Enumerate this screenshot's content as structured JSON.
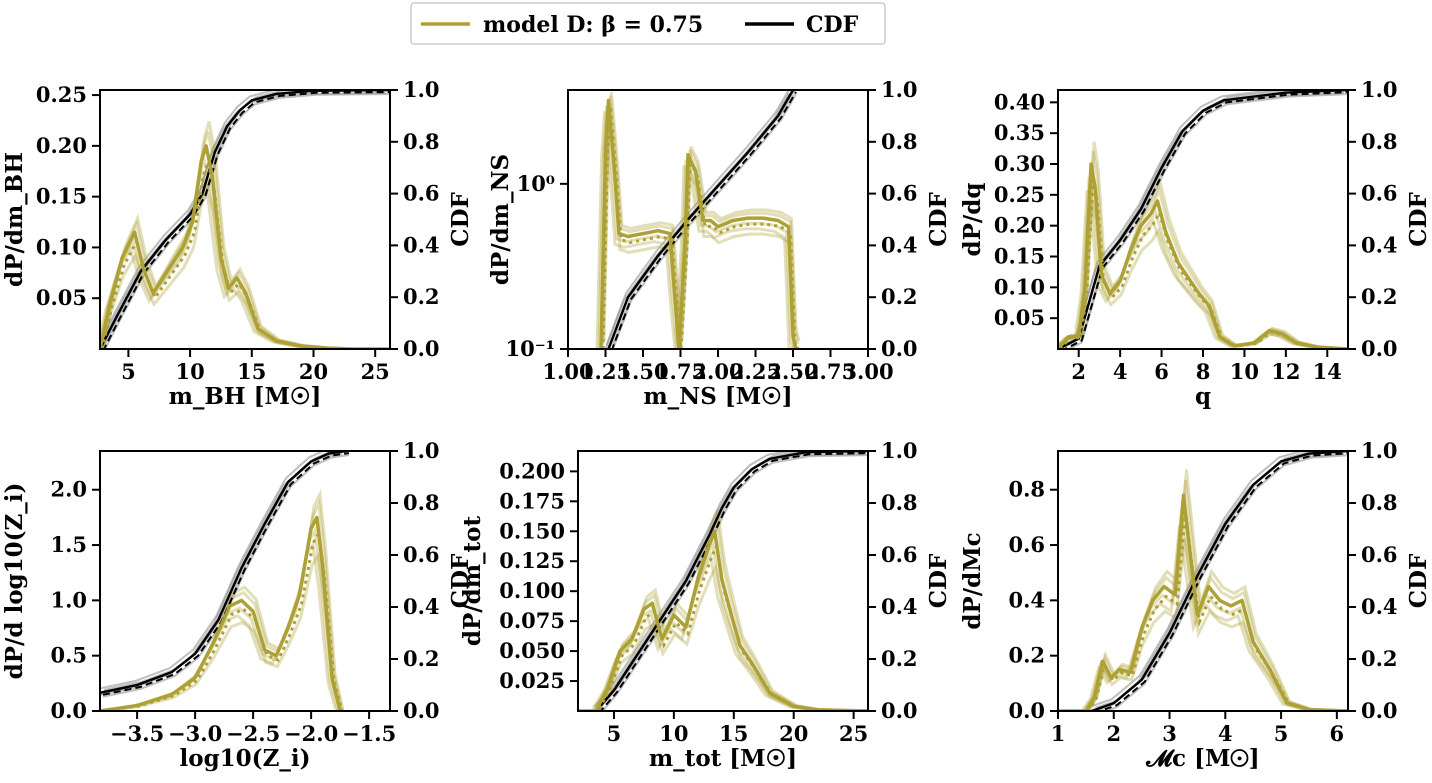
{
  "legend": {
    "items": [
      {
        "label": "model D: β = 0.75",
        "color": "#ADA034"
      },
      {
        "label": "CDF",
        "color": "#000000"
      }
    ]
  },
  "colors": {
    "model": "#ADA034",
    "cdf": "#000000",
    "cdf_variant": "#888888"
  },
  "chart_data": [
    {
      "type": "line",
      "xlabel": "m_BH [M☉]",
      "ylabel": "dP/dm_BH",
      "y2label": "CDF",
      "xlim": [
        2.7,
        26.2
      ],
      "ylim": [
        0.0,
        0.255
      ],
      "y2lim": [
        0,
        1
      ],
      "xticks": [
        5,
        10,
        15,
        20,
        25
      ],
      "xtick_labels": [
        "5",
        "10",
        "15",
        "20",
        "25"
      ],
      "yticks": [
        0.05,
        0.1,
        0.15,
        0.2,
        0.25
      ],
      "ytick_labels": [
        "0.05",
        "0.10",
        "0.15",
        "0.20",
        "0.25"
      ],
      "y2ticks": [
        0,
        0.2,
        0.4,
        0.6,
        0.8,
        1.0
      ],
      "y2tick_labels": [
        "0.0",
        "0.2",
        "0.4",
        "0.6",
        "0.8",
        "1.0"
      ],
      "series": [
        {
          "role": "pdf",
          "x": [
            2.7,
            3.5,
            4.5,
            5.5,
            6.2,
            7.0,
            7.8,
            8.6,
            9.4,
            10.2,
            10.9,
            11.3,
            11.8,
            12.5,
            13.1,
            13.8,
            14.5,
            15.5,
            17,
            19,
            21,
            23,
            26.2
          ],
          "y": [
            0.0,
            0.045,
            0.09,
            0.115,
            0.08,
            0.055,
            0.07,
            0.085,
            0.1,
            0.125,
            0.185,
            0.2,
            0.17,
            0.09,
            0.06,
            0.07,
            0.055,
            0.02,
            0.008,
            0.003,
            0.001,
            0.0,
            0.0
          ]
        },
        {
          "role": "cdf",
          "x": [
            2.7,
            4,
            6,
            8,
            10,
            11,
            12,
            13,
            14,
            15,
            17,
            20,
            26.2
          ],
          "y": [
            0.0,
            0.12,
            0.3,
            0.42,
            0.52,
            0.6,
            0.76,
            0.86,
            0.92,
            0.96,
            0.985,
            0.997,
            1.0
          ]
        }
      ]
    },
    {
      "type": "line",
      "xlabel": "m_NS [M☉]",
      "ylabel": "dP/dm_NS",
      "y2label": "CDF",
      "yscale": "log",
      "xlim": [
        1.0,
        3.0
      ],
      "ylim": [
        0.1,
        3.7
      ],
      "y2lim": [
        0,
        1
      ],
      "xticks": [
        1.0,
        1.25,
        1.5,
        1.75,
        2.0,
        2.25,
        2.5,
        2.75,
        3.0
      ],
      "xtick_labels": [
        "1.00",
        "1.25",
        "1.50",
        "1.75",
        "2.00",
        "2.25",
        "2.50",
        "2.75",
        "3.00"
      ],
      "yticks": [
        0.1,
        1.0
      ],
      "ytick_labels": [
        "10⁻¹",
        "10⁰"
      ],
      "y2ticks": [
        0,
        0.2,
        0.4,
        0.6,
        0.8,
        1.0
      ],
      "y2tick_labels": [
        "0.0",
        "0.2",
        "0.4",
        "0.6",
        "0.8",
        "1.0"
      ],
      "series": [
        {
          "role": "pdf",
          "x": [
            1.22,
            1.25,
            1.27,
            1.31,
            1.34,
            1.4,
            1.5,
            1.6,
            1.68,
            1.71,
            1.74,
            1.78,
            1.8,
            1.85,
            1.9,
            1.95,
            2.0,
            2.1,
            2.2,
            2.3,
            2.4,
            2.47,
            2.5,
            2.52
          ],
          "y": [
            0.1,
            1.6,
            3.2,
            1.2,
            0.5,
            0.48,
            0.5,
            0.52,
            0.5,
            0.22,
            0.1,
            0.45,
            1.5,
            1.2,
            0.6,
            0.6,
            0.55,
            0.6,
            0.62,
            0.62,
            0.6,
            0.55,
            0.12,
            0.1
          ]
        },
        {
          "role": "cdf",
          "x": [
            1.27,
            1.4,
            1.6,
            1.8,
            2.0,
            2.2,
            2.4,
            2.5
          ],
          "y": [
            0.0,
            0.2,
            0.36,
            0.5,
            0.63,
            0.76,
            0.9,
            1.0
          ]
        }
      ]
    },
    {
      "type": "line",
      "xlabel": "q",
      "ylabel": "dP/dq",
      "y2label": "CDF",
      "xlim": [
        1.0,
        15.0
      ],
      "ylim": [
        0.0,
        0.42
      ],
      "y2lim": [
        0,
        1
      ],
      "xticks": [
        2,
        4,
        6,
        8,
        10,
        12,
        14
      ],
      "xtick_labels": [
        "2",
        "4",
        "6",
        "8",
        "10",
        "12",
        "14"
      ],
      "yticks": [
        0.05,
        0.1,
        0.15,
        0.2,
        0.25,
        0.3,
        0.35,
        0.4
      ],
      "ytick_labels": [
        "0.05",
        "0.10",
        "0.15",
        "0.20",
        "0.25",
        "0.30",
        "0.35",
        "0.40"
      ],
      "y2ticks": [
        0,
        0.2,
        0.4,
        0.6,
        0.8,
        1.0
      ],
      "y2tick_labels": [
        "0.0",
        "0.2",
        "0.4",
        "0.6",
        "0.8",
        "1.0"
      ],
      "series": [
        {
          "role": "pdf",
          "x": [
            1.0,
            1.5,
            2.0,
            2.3,
            2.6,
            2.8,
            3.1,
            3.5,
            4.0,
            4.5,
            5.0,
            5.5,
            5.8,
            6.2,
            6.8,
            7.2,
            7.8,
            8.3,
            8.8,
            9.5,
            10.5,
            11.2,
            11.8,
            12.5,
            13.5,
            15.0
          ],
          "y": [
            0.0,
            0.02,
            0.02,
            0.1,
            0.3,
            0.26,
            0.12,
            0.09,
            0.11,
            0.16,
            0.2,
            0.22,
            0.24,
            0.19,
            0.14,
            0.12,
            0.09,
            0.07,
            0.02,
            0.005,
            0.01,
            0.03,
            0.025,
            0.01,
            0.003,
            0.0
          ]
        },
        {
          "role": "cdf",
          "x": [
            1.0,
            2.0,
            3.0,
            4.0,
            5.0,
            6.0,
            7.0,
            8.0,
            9.0,
            10.0,
            12.0,
            15.0
          ],
          "y": [
            0.0,
            0.04,
            0.32,
            0.42,
            0.54,
            0.7,
            0.84,
            0.92,
            0.96,
            0.97,
            0.99,
            1.0
          ]
        }
      ]
    },
    {
      "type": "line",
      "xlabel": "log10(Z_i)",
      "ylabel": "dP/d log10(Z_i)",
      "y2label": "CDF",
      "xlim": [
        -3.82,
        -1.32
      ],
      "ylim": [
        0.0,
        2.35
      ],
      "y2lim": [
        0,
        1
      ],
      "xticks": [
        -3.5,
        -3.0,
        -2.5,
        -2.0,
        -1.5
      ],
      "xtick_labels": [
        "−3.5",
        "−3.0",
        "−2.5",
        "−2.0",
        "−1.5"
      ],
      "yticks": [
        0.0,
        0.5,
        1.0,
        1.5,
        2.0
      ],
      "ytick_labels": [
        "0.0",
        "0.5",
        "1.0",
        "1.5",
        "2.0"
      ],
      "y2ticks": [
        0,
        0.2,
        0.4,
        0.6,
        0.8,
        1.0
      ],
      "y2tick_labels": [
        "0.0",
        "0.2",
        "0.4",
        "0.6",
        "0.8",
        "1.0"
      ],
      "series": [
        {
          "role": "pdf",
          "x": [
            -3.82,
            -3.5,
            -3.2,
            -3.0,
            -2.85,
            -2.7,
            -2.6,
            -2.5,
            -2.4,
            -2.3,
            -2.2,
            -2.1,
            -2.0,
            -1.95,
            -1.9,
            -1.82,
            -1.75
          ],
          "y": [
            0.0,
            0.05,
            0.15,
            0.3,
            0.6,
            0.95,
            1.0,
            0.9,
            0.55,
            0.5,
            0.75,
            1.05,
            1.65,
            1.75,
            1.3,
            0.3,
            0.0
          ]
        },
        {
          "role": "cdf",
          "x": [
            -3.82,
            -3.5,
            -3.2,
            -3.0,
            -2.8,
            -2.6,
            -2.4,
            -2.2,
            -2.0,
            -1.85,
            -1.7
          ],
          "y": [
            0.07,
            0.1,
            0.15,
            0.22,
            0.35,
            0.55,
            0.72,
            0.88,
            0.96,
            0.99,
            1.0
          ]
        }
      ]
    },
    {
      "type": "line",
      "xlabel": "m_tot [M☉]",
      "ylabel": "dP/dm_tot",
      "y2label": "CDF",
      "xlim": [
        2.0,
        26.2
      ],
      "ylim": [
        0.0,
        0.217
      ],
      "y2lim": [
        0,
        1
      ],
      "xticks": [
        5,
        10,
        15,
        20,
        25
      ],
      "xtick_labels": [
        "5",
        "10",
        "15",
        "20",
        "25"
      ],
      "yticks": [
        0.025,
        0.05,
        0.075,
        0.1,
        0.125,
        0.15,
        0.175,
        0.2
      ],
      "ytick_labels": [
        "0.025",
        "0.050",
        "0.075",
        "0.100",
        "0.125",
        "0.150",
        "0.175",
        "0.200"
      ],
      "y2ticks": [
        0,
        0.2,
        0.4,
        0.6,
        0.8,
        1.0
      ],
      "y2tick_labels": [
        "0.0",
        "0.2",
        "0.4",
        "0.6",
        "0.8",
        "1.0"
      ],
      "series": [
        {
          "role": "pdf",
          "x": [
            2.0,
            3.5,
            4.5,
            5.5,
            6.5,
            7.5,
            8.2,
            9.0,
            10.0,
            11.0,
            12.0,
            13.0,
            13.4,
            14.0,
            14.8,
            15.5,
            16.5,
            18,
            20,
            22,
            26.2
          ],
          "y": [
            0.0,
            0.0,
            0.02,
            0.05,
            0.06,
            0.085,
            0.09,
            0.06,
            0.08,
            0.07,
            0.11,
            0.14,
            0.15,
            0.11,
            0.08,
            0.055,
            0.04,
            0.015,
            0.004,
            0.001,
            0.0
          ]
        },
        {
          "role": "cdf",
          "x": [
            3.5,
            5.0,
            7.0,
            9.0,
            11.0,
            13.0,
            14.0,
            15.0,
            16.5,
            18.0,
            21.0,
            26.2
          ],
          "y": [
            0.0,
            0.08,
            0.22,
            0.36,
            0.5,
            0.68,
            0.78,
            0.86,
            0.93,
            0.97,
            0.995,
            1.0
          ]
        }
      ]
    },
    {
      "type": "line",
      "xlabel": "𝓜c [M☉]",
      "ylabel": "dP/dMc",
      "y2label": "CDF",
      "xlim": [
        1.0,
        6.2
      ],
      "ylim": [
        0.0,
        0.94
      ],
      "y2lim": [
        0,
        1
      ],
      "xticks": [
        1,
        2,
        3,
        4,
        5,
        6
      ],
      "xtick_labels": [
        "1",
        "2",
        "3",
        "4",
        "5",
        "6"
      ],
      "yticks": [
        0.0,
        0.2,
        0.4,
        0.6,
        0.8
      ],
      "ytick_labels": [
        "0.0",
        "0.2",
        "0.4",
        "0.6",
        "0.8"
      ],
      "y2ticks": [
        0,
        0.2,
        0.4,
        0.6,
        0.8,
        1.0
      ],
      "y2tick_labels": [
        "0.0",
        "0.2",
        "0.4",
        "0.6",
        "0.8",
        "1.0"
      ],
      "series": [
        {
          "role": "pdf",
          "x": [
            1.0,
            1.5,
            1.65,
            1.8,
            1.95,
            2.1,
            2.3,
            2.5,
            2.7,
            2.9,
            3.1,
            3.25,
            3.35,
            3.5,
            3.7,
            3.9,
            4.1,
            4.3,
            4.5,
            4.8,
            5.1,
            5.5,
            6.2
          ],
          "y": [
            0.0,
            0.0,
            0.05,
            0.18,
            0.12,
            0.15,
            0.14,
            0.3,
            0.4,
            0.45,
            0.42,
            0.78,
            0.6,
            0.35,
            0.45,
            0.4,
            0.38,
            0.4,
            0.25,
            0.15,
            0.03,
            0.005,
            0.0
          ]
        },
        {
          "role": "cdf",
          "x": [
            1.6,
            2.0,
            2.5,
            3.0,
            3.5,
            4.0,
            4.5,
            5.0,
            5.5,
            6.2
          ],
          "y": [
            0.0,
            0.03,
            0.12,
            0.3,
            0.52,
            0.72,
            0.87,
            0.96,
            0.99,
            1.0
          ]
        }
      ]
    }
  ]
}
